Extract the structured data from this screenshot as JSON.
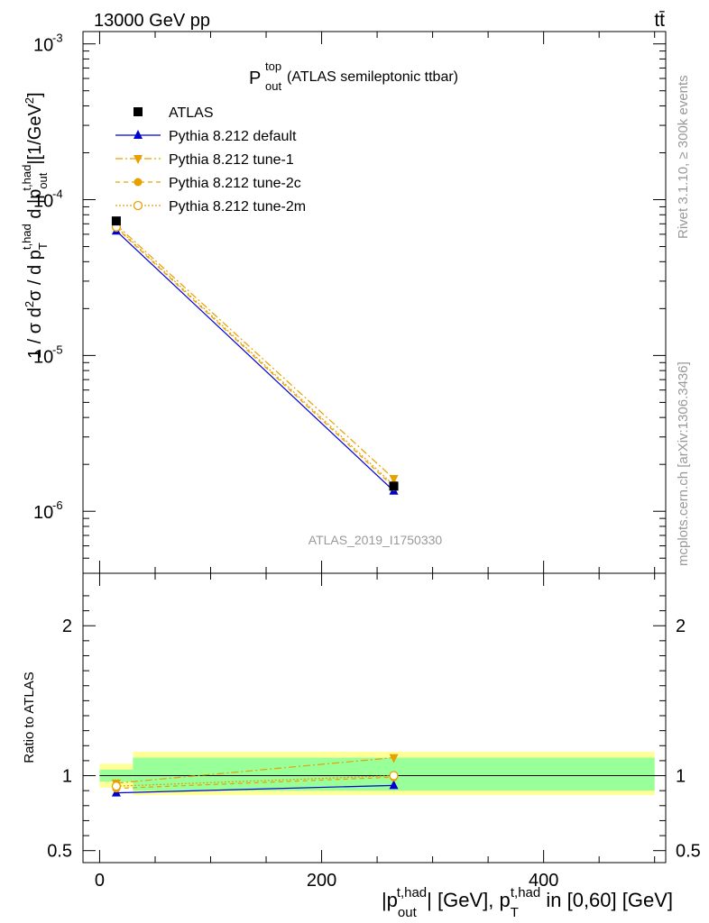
{
  "header": {
    "energy_label": "13000 GeV pp",
    "process_label": "tt̄"
  },
  "side": {
    "rivet_label": "Rivet 3.1.10, ≥ 300k events",
    "mcplots_label": "mcplots.cern.ch [arXiv:1306.3436]"
  },
  "analysis_id": "ATLAS_2019_I1750330",
  "colors": {
    "atlas": "#000000",
    "default": "#0000d0",
    "tune": "#e8a000",
    "band_inner": "#99ff99",
    "band_outer": "#ffff99"
  },
  "chart_data": [
    {
      "type": "line",
      "panel": "main",
      "title": {
        "main": "P",
        "sup": "top",
        "sub": "out",
        "rest": " (ATLAS semileptonic ttbar)"
      },
      "ylabel": "1 / σ d²σ / d pT^t,had d |pout^t,had| [1/GeV²]",
      "yscale": "log",
      "ylim": [
        4e-07,
        0.0012
      ],
      "xlim": [
        -15,
        510
      ],
      "ytick_labels": [
        "10",
        "10",
        "10",
        "10"
      ],
      "ytick_exponents": [
        "-6",
        "-5",
        "-4",
        "-3"
      ],
      "ytick_values": [
        1e-06,
        1e-05,
        0.0001,
        0.001
      ],
      "x": [
        15,
        265
      ],
      "series": [
        {
          "name": "ATLAS",
          "key": "atlas",
          "values": [
            7.3e-05,
            1.45e-06
          ]
        },
        {
          "name": "Pythia 8.212 default",
          "key": "default",
          "values": [
            6.3e-05,
            1.35e-06
          ]
        },
        {
          "name": "Pythia 8.212 tune-1",
          "key": "tune1",
          "values": [
            6.9e-05,
            1.62e-06
          ]
        },
        {
          "name": "Pythia 8.212 tune-2c",
          "key": "tune2c",
          "values": [
            6.6e-05,
            1.43e-06
          ]
        },
        {
          "name": "Pythia 8.212 tune-2m",
          "key": "tune2m",
          "values": [
            6.7e-05,
            1.47e-06
          ]
        }
      ]
    },
    {
      "type": "line",
      "panel": "ratio",
      "ylabel": "Ratio to ATLAS",
      "xlabel": "|pout^t,had| [GeV], pT^t,had in [0,60] [GeV]",
      "ylim": [
        0.42,
        2.35
      ],
      "xlim": [
        -15,
        510
      ],
      "ytick_labels": [
        "0.5",
        "1",
        "2"
      ],
      "ytick_values": [
        0.5,
        1,
        2
      ],
      "xtick_labels": [
        "0",
        "200",
        "400"
      ],
      "xtick_values": [
        0,
        200,
        400
      ],
      "bins": [
        [
          0,
          30
        ],
        [
          30,
          500
        ]
      ],
      "band_inner": [
        [
          0.96,
          1.04
        ],
        [
          0.9,
          1.12
        ]
      ],
      "band_outer": [
        [
          0.92,
          1.08
        ],
        [
          0.87,
          1.16
        ]
      ],
      "x": [
        15,
        265
      ],
      "series": [
        {
          "name": "Pythia 8.212 default",
          "key": "default",
          "values": [
            0.885,
            0.935
          ]
        },
        {
          "name": "Pythia 8.212 tune-1",
          "key": "tune1",
          "values": [
            0.95,
            1.12
          ]
        },
        {
          "name": "Pythia 8.212 tune-2c",
          "key": "tune2c",
          "values": [
            0.915,
            0.99
          ]
        },
        {
          "name": "Pythia 8.212 tune-2m",
          "key": "tune2m",
          "values": [
            0.93,
            1.0
          ]
        }
      ]
    }
  ]
}
